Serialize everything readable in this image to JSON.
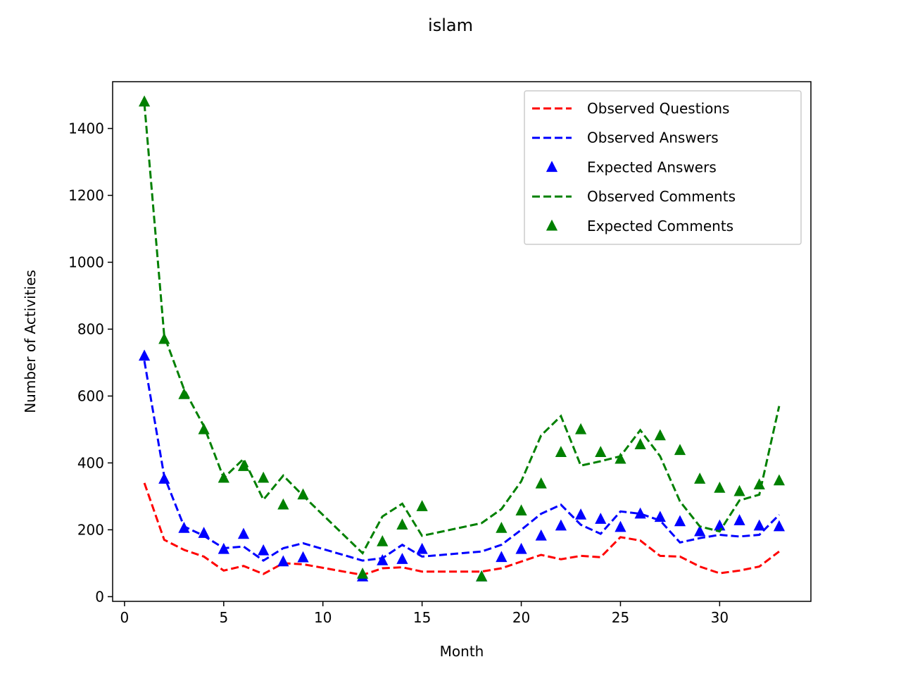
{
  "chart_data": {
    "type": "line",
    "title": "islam",
    "xlabel": "Month",
    "ylabel": "Number of Activities",
    "xlim": [
      -0.6,
      34.6
    ],
    "ylim": [
      -14,
      1540
    ],
    "xticks": [
      0,
      5,
      10,
      15,
      20,
      25,
      30
    ],
    "yticks": [
      0,
      200,
      400,
      600,
      800,
      1000,
      1200,
      1400
    ],
    "grid": false,
    "legend_position": "top-right",
    "x": [
      1,
      2,
      3,
      4,
      5,
      6,
      7,
      8,
      9,
      12,
      13,
      14,
      15,
      18,
      19,
      20,
      21,
      22,
      23,
      24,
      25,
      26,
      27,
      28,
      29,
      30,
      31,
      32,
      33
    ],
    "series": [
      {
        "name": "Observed Questions",
        "style": "dashed-line",
        "color": "#ff0000",
        "values": [
          340,
          170,
          140,
          120,
          78,
          92,
          68,
          100,
          97,
          65,
          85,
          88,
          75,
          75,
          85,
          105,
          125,
          112,
          122,
          118,
          178,
          168,
          122,
          120,
          90,
          70,
          78,
          90,
          135
        ]
      },
      {
        "name": "Observed Answers",
        "style": "dashed-line",
        "color": "#0000ff",
        "values": [
          705,
          360,
          210,
          182,
          145,
          150,
          108,
          145,
          160,
          108,
          115,
          155,
          120,
          135,
          155,
          200,
          248,
          275,
          215,
          188,
          255,
          248,
          228,
          162,
          175,
          185,
          180,
          185,
          245
        ]
      },
      {
        "name": "Expected Answers",
        "style": "triangle-markers",
        "color": "#0000ff",
        "values": [
          720,
          352,
          205,
          190,
          142,
          187,
          138,
          105,
          117,
          60,
          108,
          112,
          142,
          60,
          118,
          142,
          182,
          212,
          245,
          232,
          208,
          248,
          238,
          225,
          195,
          212,
          228,
          212,
          210
        ]
      },
      {
        "name": "Observed Comments",
        "style": "dashed-line",
        "color": "#008000",
        "values": [
          1475,
          780,
          620,
          510,
          355,
          412,
          290,
          362,
          302,
          130,
          240,
          278,
          182,
          220,
          262,
          345,
          482,
          540,
          392,
          405,
          420,
          498,
          420,
          285,
          210,
          195,
          288,
          305,
          570
        ]
      },
      {
        "name": "Expected Comments",
        "style": "triangle-markers",
        "color": "#008000",
        "values": [
          1480,
          770,
          605,
          500,
          355,
          390,
          355,
          275,
          305,
          68,
          165,
          215,
          270,
          60,
          205,
          257,
          338,
          432,
          500,
          432,
          412,
          455,
          482,
          438,
          352,
          325,
          315,
          335,
          347
        ]
      }
    ]
  }
}
